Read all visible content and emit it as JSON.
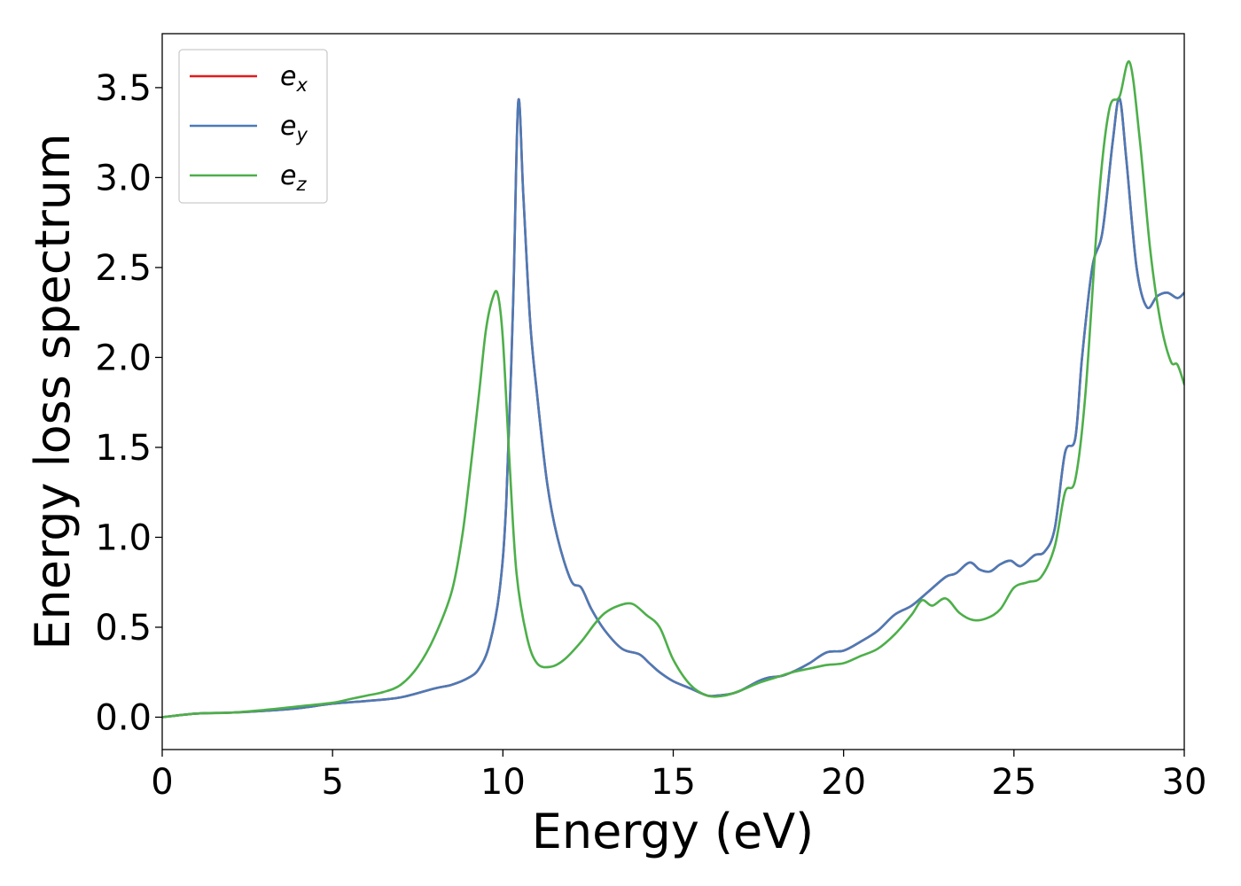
{
  "chart_data": {
    "type": "line",
    "title": "",
    "xlabel": "Energy (eV)",
    "ylabel": "Energy loss spectrum",
    "xlim": [
      0,
      30
    ],
    "ylim": [
      -0.18,
      3.8
    ],
    "xticks": [
      0,
      5,
      10,
      15,
      20,
      25,
      30
    ],
    "xtick_labels": [
      "0",
      "5",
      "10",
      "15",
      "20",
      "25",
      "30"
    ],
    "yticks": [
      0.0,
      0.5,
      1.0,
      1.5,
      2.0,
      2.5,
      3.0,
      3.5
    ],
    "ytick_labels": [
      "0.0",
      "0.5",
      "1.0",
      "1.5",
      "2.0",
      "2.5",
      "3.0",
      "3.5"
    ],
    "grid": false,
    "legend_position": "top-left",
    "series": [
      {
        "name": "e_x",
        "label_base": "e",
        "label_sub": "x",
        "color": "#e41a1c",
        "x": [
          0,
          1,
          2,
          3,
          4,
          5,
          6,
          7,
          8,
          8.5,
          9,
          9.3,
          9.6,
          9.9,
          10.1,
          10.3,
          10.45,
          10.6,
          10.8,
          11,
          11.3,
          11.6,
          12,
          12.3,
          12.6,
          13,
          13.5,
          14,
          14.3,
          14.6,
          15,
          15.5,
          16,
          16.3,
          16.7,
          17,
          17.5,
          17.8,
          18.2,
          18.6,
          19,
          19.5,
          20,
          20.5,
          21,
          21.5,
          22,
          22.5,
          23,
          23.3,
          23.7,
          24,
          24.3,
          24.6,
          24.9,
          25.2,
          25.6,
          25.9,
          26.2,
          26.5,
          26.8,
          27,
          27.3,
          27.6,
          27.9,
          28.1,
          28.3,
          28.6,
          28.9,
          29.2,
          29.5,
          29.8,
          30
        ],
        "y": [
          0,
          0.02,
          0.025,
          0.035,
          0.05,
          0.075,
          0.09,
          0.11,
          0.16,
          0.18,
          0.22,
          0.27,
          0.4,
          0.7,
          1.2,
          2.3,
          3.42,
          2.9,
          2.2,
          1.8,
          1.3,
          1.0,
          0.76,
          0.72,
          0.6,
          0.48,
          0.38,
          0.35,
          0.3,
          0.25,
          0.2,
          0.16,
          0.12,
          0.12,
          0.13,
          0.15,
          0.2,
          0.22,
          0.23,
          0.26,
          0.3,
          0.36,
          0.37,
          0.42,
          0.48,
          0.57,
          0.62,
          0.7,
          0.78,
          0.8,
          0.86,
          0.82,
          0.81,
          0.85,
          0.87,
          0.84,
          0.9,
          0.92,
          1.05,
          1.47,
          1.55,
          2.0,
          2.5,
          2.7,
          3.2,
          3.44,
          3.1,
          2.5,
          2.28,
          2.34,
          2.36,
          2.33,
          2.36
        ]
      },
      {
        "name": "e_y",
        "label_base": "e",
        "label_sub": "y",
        "color": "#4a7bb7",
        "x": [
          0,
          1,
          2,
          3,
          4,
          5,
          6,
          7,
          8,
          8.5,
          9,
          9.3,
          9.6,
          9.9,
          10.1,
          10.3,
          10.45,
          10.6,
          10.8,
          11,
          11.3,
          11.6,
          12,
          12.3,
          12.6,
          13,
          13.5,
          14,
          14.3,
          14.6,
          15,
          15.5,
          16,
          16.3,
          16.7,
          17,
          17.5,
          17.8,
          18.2,
          18.6,
          19,
          19.5,
          20,
          20.5,
          21,
          21.5,
          22,
          22.5,
          23,
          23.3,
          23.7,
          24,
          24.3,
          24.6,
          24.9,
          25.2,
          25.6,
          25.9,
          26.2,
          26.5,
          26.8,
          27,
          27.3,
          27.6,
          27.9,
          28.1,
          28.3,
          28.6,
          28.9,
          29.2,
          29.5,
          29.8,
          30
        ],
        "y": [
          0,
          0.02,
          0.025,
          0.035,
          0.05,
          0.075,
          0.09,
          0.11,
          0.16,
          0.18,
          0.22,
          0.27,
          0.4,
          0.7,
          1.2,
          2.3,
          3.42,
          2.9,
          2.2,
          1.8,
          1.3,
          1.0,
          0.76,
          0.72,
          0.6,
          0.48,
          0.38,
          0.35,
          0.3,
          0.25,
          0.2,
          0.16,
          0.12,
          0.12,
          0.13,
          0.15,
          0.2,
          0.22,
          0.23,
          0.26,
          0.3,
          0.36,
          0.37,
          0.42,
          0.48,
          0.57,
          0.62,
          0.7,
          0.78,
          0.8,
          0.86,
          0.82,
          0.81,
          0.85,
          0.87,
          0.84,
          0.9,
          0.92,
          1.05,
          1.47,
          1.55,
          2.0,
          2.5,
          2.7,
          3.2,
          3.44,
          3.1,
          2.5,
          2.28,
          2.34,
          2.36,
          2.33,
          2.36
        ]
      },
      {
        "name": "e_z",
        "label_base": "e",
        "label_sub": "z",
        "color": "#4daf4a",
        "x": [
          0,
          1,
          2,
          3,
          4,
          5,
          5.5,
          6,
          6.5,
          7,
          7.5,
          8,
          8.5,
          8.8,
          9,
          9.3,
          9.5,
          9.7,
          9.85,
          10,
          10.2,
          10.4,
          10.7,
          11,
          11.4,
          11.8,
          12.3,
          12.7,
          13,
          13.4,
          13.8,
          14.2,
          14.6,
          15,
          15.5,
          16,
          16.5,
          17,
          17.5,
          18,
          18.5,
          19,
          19.5,
          20,
          20.5,
          21,
          21.5,
          22,
          22.3,
          22.6,
          23,
          23.4,
          23.8,
          24.2,
          24.6,
          25,
          25.4,
          25.8,
          26.2,
          26.5,
          26.8,
          27.1,
          27.5,
          27.8,
          28.1,
          28.4,
          28.7,
          29,
          29.3,
          29.6,
          29.8,
          30
        ],
        "y": [
          0,
          0.02,
          0.025,
          0.04,
          0.06,
          0.08,
          0.1,
          0.12,
          0.14,
          0.18,
          0.28,
          0.45,
          0.7,
          1.0,
          1.3,
          1.8,
          2.15,
          2.33,
          2.35,
          2.1,
          1.4,
          0.8,
          0.45,
          0.3,
          0.28,
          0.32,
          0.42,
          0.52,
          0.58,
          0.62,
          0.63,
          0.57,
          0.5,
          0.32,
          0.18,
          0.12,
          0.12,
          0.15,
          0.19,
          0.22,
          0.25,
          0.27,
          0.29,
          0.3,
          0.34,
          0.38,
          0.46,
          0.57,
          0.65,
          0.62,
          0.66,
          0.58,
          0.54,
          0.55,
          0.6,
          0.72,
          0.75,
          0.78,
          0.95,
          1.25,
          1.32,
          1.8,
          2.9,
          3.38,
          3.45,
          3.64,
          3.2,
          2.6,
          2.2,
          1.98,
          1.96,
          1.85
        ]
      }
    ]
  }
}
